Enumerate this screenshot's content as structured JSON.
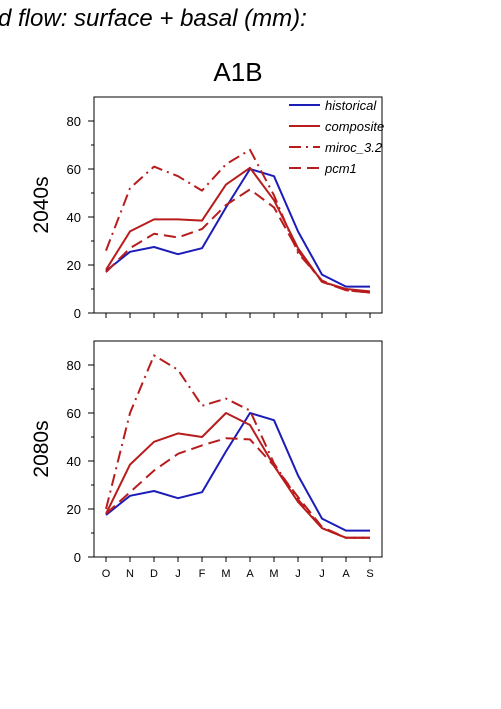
{
  "header": {
    "title": "d flow: surface + basal (mm):",
    "scenario": "A1B"
  },
  "colors": {
    "historical": "#1c1cb8",
    "composite": "#b81c1c",
    "miroc_3.2": "#b81c1c",
    "pcm1": "#b81c1c",
    "axis": "#000000"
  },
  "chart_data": [
    {
      "type": "line",
      "ylabel": "2040s",
      "ylim": [
        0,
        90
      ],
      "yticks": [
        0,
        20,
        40,
        60,
        80
      ],
      "categories": [
        "O",
        "N",
        "D",
        "J",
        "F",
        "M",
        "A",
        "M",
        "J",
        "J",
        "A",
        "S"
      ],
      "legend": {
        "position": "top-right"
      },
      "series": [
        {
          "name": "historical",
          "style": "solid",
          "color": "#1c1cb8",
          "values": [
            17.5,
            25.5,
            27.5,
            24.5,
            27,
            44,
            60,
            57,
            34,
            16,
            11,
            11
          ]
        },
        {
          "name": "composite",
          "style": "solid",
          "color": "#b81c1c",
          "values": [
            18,
            34,
            39,
            39,
            38.5,
            53.5,
            60.5,
            47,
            27,
            13,
            10,
            9
          ]
        },
        {
          "name": "miroc_3.2",
          "style": "dashdot",
          "color": "#b81c1c",
          "values": [
            26,
            52,
            61,
            57,
            51,
            62,
            68,
            49,
            25,
            13.5,
            9.5,
            8.5
          ]
        },
        {
          "name": "pcm1",
          "style": "dashed",
          "color": "#b81c1c",
          "values": [
            17,
            27,
            33,
            31.5,
            35,
            45,
            51.5,
            44,
            26,
            13,
            9.5,
            8.5
          ]
        }
      ]
    },
    {
      "type": "line",
      "ylabel": "2080s",
      "ylim": [
        0,
        90
      ],
      "yticks": [
        0,
        20,
        40,
        60,
        80
      ],
      "categories": [
        "O",
        "N",
        "D",
        "J",
        "F",
        "M",
        "A",
        "M",
        "J",
        "J",
        "A",
        "S"
      ],
      "xtick_labels": [
        "O",
        "N",
        "D",
        "J",
        "F",
        "M",
        "A",
        "M",
        "J",
        "J",
        "A",
        "S"
      ],
      "series": [
        {
          "name": "historical",
          "style": "solid",
          "color": "#1c1cb8",
          "values": [
            17.5,
            25.5,
            27.5,
            24.5,
            27,
            44,
            60,
            57,
            34,
            16,
            11,
            11
          ]
        },
        {
          "name": "composite",
          "style": "solid",
          "color": "#b81c1c",
          "values": [
            18,
            38.5,
            48,
            51.5,
            50,
            60,
            55,
            38,
            23,
            12,
            8,
            8
          ]
        },
        {
          "name": "miroc_3.2",
          "style": "dashdot",
          "color": "#b81c1c",
          "values": [
            20,
            60,
            84,
            78,
            63,
            66,
            61,
            39,
            24,
            12,
            8,
            8
          ]
        },
        {
          "name": "pcm1",
          "style": "dashed",
          "color": "#b81c1c",
          "values": [
            18,
            27,
            36,
            43,
            46.5,
            49.5,
            49,
            38,
            25,
            12.5,
            8,
            8
          ]
        }
      ]
    }
  ]
}
